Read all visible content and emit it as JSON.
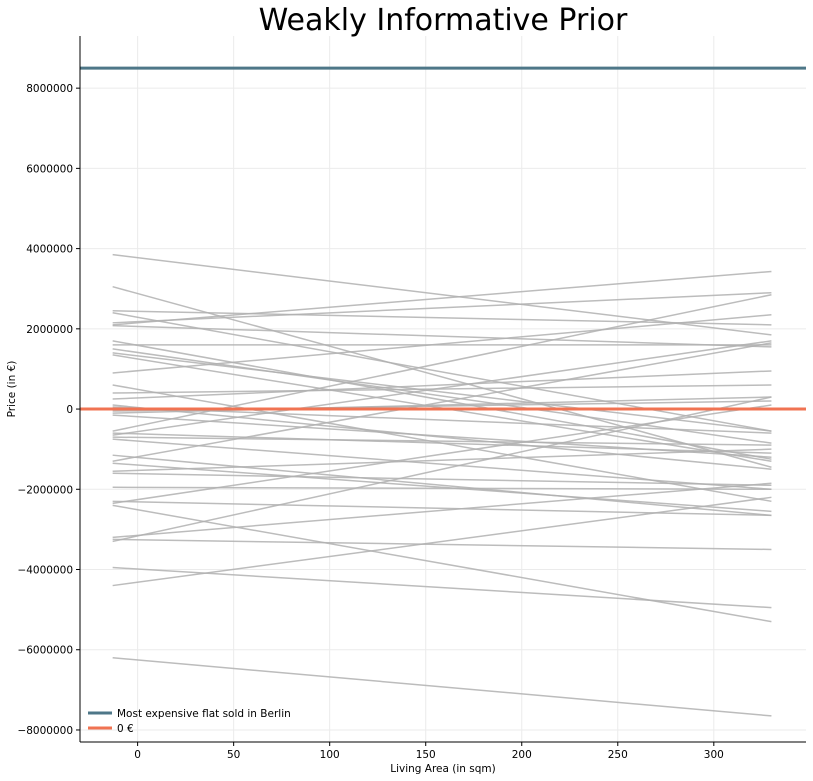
{
  "chart_data": {
    "type": "line",
    "title": "Weakly Informative Prior",
    "xlabel": "Living Area (in sqm)",
    "ylabel": "Price (in €)",
    "xlim": [
      -30,
      348
    ],
    "ylim": [
      -8300000,
      9300000
    ],
    "xticks": [
      0,
      50,
      100,
      150,
      200,
      250,
      300
    ],
    "yticks": [
      8000000,
      6000000,
      4000000,
      2000000,
      0,
      -2000000,
      -4000000,
      -6000000,
      -8000000
    ],
    "ytick_labels": [
      "8000000",
      "6000000",
      "4000000",
      "2000000",
      "0",
      "−2000000",
      "−4000000",
      "−6000000",
      "−8000000"
    ],
    "grid": true,
    "legend_position": "lower-left",
    "reference_lines": [
      {
        "name": "Most expensive flat sold in Berlin",
        "y": 8500000,
        "color": "#4e7788"
      },
      {
        "name": "0 €",
        "y": 0,
        "color": "#f07352"
      }
    ],
    "prior_line_color": "#b0b0b0",
    "prior_lines_x": [
      -13,
      330
    ],
    "prior_lines": [
      [
        3850000,
        1850000
      ],
      [
        3050000,
        -1450000
      ],
      [
        2450000,
        2100000
      ],
      [
        2400000,
        -550000
      ],
      [
        2150000,
        2900000
      ],
      [
        2100000,
        3430000
      ],
      [
        2080000,
        1550000
      ],
      [
        1700000,
        -1250000
      ],
      [
        1600000,
        1600000
      ],
      [
        1500000,
        -850000
      ],
      [
        1400000,
        -550000
      ],
      [
        1350000,
        -1300000
      ],
      [
        900000,
        2350000
      ],
      [
        600000,
        -2300000
      ],
      [
        400000,
        600000
      ],
      [
        250000,
        950000
      ],
      [
        100000,
        -1500000
      ],
      [
        50000,
        -600000
      ],
      [
        -50000,
        200000
      ],
      [
        -100000,
        300000
      ],
      [
        -150000,
        -1200000
      ],
      [
        -550000,
        2850000
      ],
      [
        -600000,
        -1100000
      ],
      [
        -650000,
        1700000
      ],
      [
        -700000,
        -900000
      ],
      [
        -750000,
        -2000000
      ],
      [
        -1150000,
        -2650000
      ],
      [
        -1300000,
        1650000
      ],
      [
        -1350000,
        -2550000
      ],
      [
        -1550000,
        -1000000
      ],
      [
        -1600000,
        -1900000
      ],
      [
        -1950000,
        -2000000
      ],
      [
        -2300000,
        -2650000
      ],
      [
        -2350000,
        100000
      ],
      [
        -2400000,
        -5300000
      ],
      [
        -3200000,
        -1850000
      ],
      [
        -3250000,
        -3500000
      ],
      [
        -3300000,
        300000
      ],
      [
        -3950000,
        -4950000
      ],
      [
        -4400000,
        -2200000
      ],
      [
        -6200000,
        -7650000
      ]
    ]
  }
}
